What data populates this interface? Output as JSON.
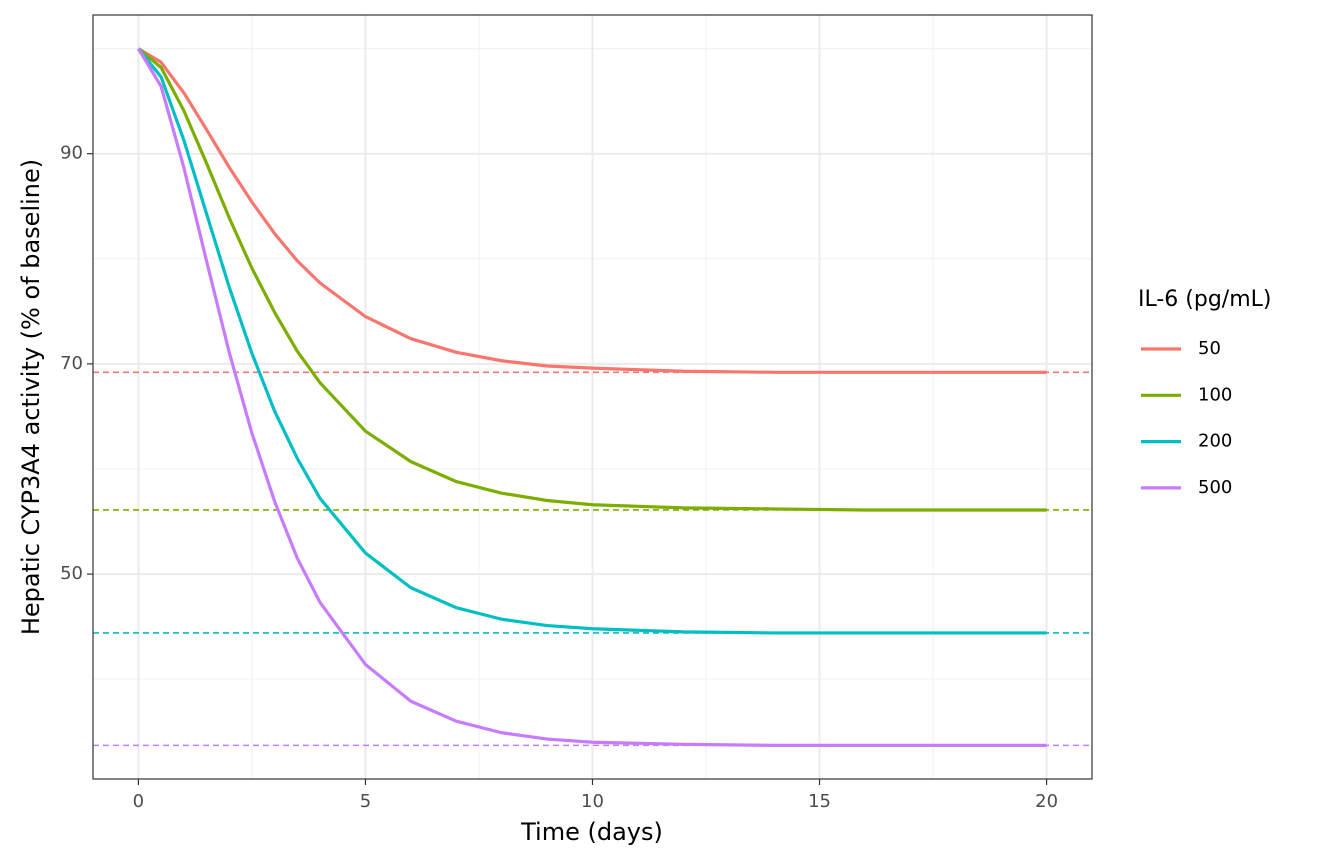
{
  "chart_data": {
    "type": "line",
    "x_label": "Time (days)",
    "y_label": "Hepatic CYP3A4 activity (% of baseline)",
    "legend_title": "IL-6 (pg/mL)",
    "legend_position": "right",
    "grid": true,
    "x": [
      0,
      0.5,
      1,
      1.5,
      2,
      2.5,
      3,
      3.5,
      4,
      5,
      6,
      7,
      8,
      9,
      10,
      12,
      14,
      16,
      18,
      20
    ],
    "xlim": [
      -1,
      21
    ],
    "xticks": [
      0,
      5,
      10,
      15,
      20
    ],
    "xminor": [
      2.5,
      7.5,
      12.5,
      17.5
    ],
    "ylim": [
      30.5,
      103.2
    ],
    "yticks": [
      50,
      70,
      90
    ],
    "yminor": [
      40,
      60,
      80,
      100
    ],
    "series": [
      {
        "name": "50",
        "color": "#f8766d",
        "steady_state": 69.2,
        "values": [
          100,
          98.7,
          95.8,
          92.3,
          88.7,
          85.4,
          82.4,
          79.8,
          77.7,
          74.5,
          72.4,
          71.1,
          70.3,
          69.8,
          69.6,
          69.3,
          69.2,
          69.2,
          69.2,
          69.2
        ]
      },
      {
        "name": "100",
        "color": "#7cae00",
        "steady_state": 56.1,
        "values": [
          100,
          98.2,
          94.1,
          89.1,
          83.9,
          79.1,
          74.9,
          71.2,
          68.2,
          63.6,
          60.7,
          58.8,
          57.7,
          57.0,
          56.6,
          56.3,
          56.2,
          56.1,
          56.1,
          56.1
        ]
      },
      {
        "name": "200",
        "color": "#00bfc4",
        "steady_state": 44.4,
        "values": [
          100,
          97.3,
          91.3,
          84.3,
          77.3,
          71.0,
          65.5,
          61.0,
          57.2,
          52.0,
          48.7,
          46.8,
          45.7,
          45.1,
          44.8,
          44.5,
          44.4,
          44.4,
          44.4,
          44.4
        ]
      },
      {
        "name": "500",
        "color": "#c77cff",
        "steady_state": 33.7,
        "values": [
          100,
          96.4,
          88.7,
          79.8,
          71.1,
          63.4,
          56.9,
          51.5,
          47.3,
          41.4,
          37.9,
          36.0,
          34.9,
          34.3,
          34.0,
          33.8,
          33.7,
          33.7,
          33.7,
          33.7
        ]
      }
    ]
  }
}
